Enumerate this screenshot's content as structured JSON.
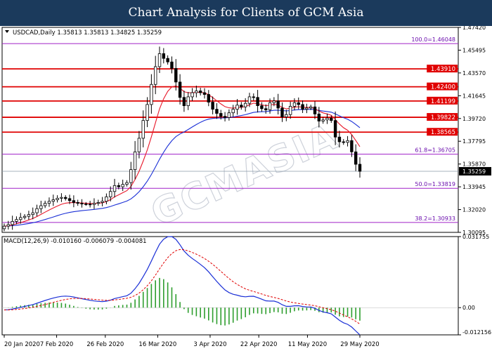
{
  "header": {
    "title": "Chart Analysis for Clients of GCM Asia"
  },
  "watermark": "GCMASIA",
  "chart_data": {
    "type": "candlestick",
    "symbol_line": "USDCAD,Daily  1.35813 1.35813 1.34825 1.35259",
    "current_price": 1.35259,
    "price_axis_ticks": [
      "1.47420",
      "1.45495",
      "1.43570",
      "1.41645",
      "1.39720",
      "1.37795",
      "1.35870",
      "1.33945",
      "1.32020",
      "1.30095"
    ],
    "x_tick_labels": [
      "20 Jan 2020",
      "7 Feb 2020",
      "26 Feb 2020",
      "16 Mar 2020",
      "3 Apr 2020",
      "22 Apr 2020",
      "11 May 2020",
      "29 May 2020"
    ],
    "resistance_levels": [
      1.4391,
      1.424,
      1.41199,
      1.39822,
      1.38565
    ],
    "fib_levels": [
      {
        "label": "100.0=1.46048",
        "value": 1.46048
      },
      {
        "label": "61.8=1.36705",
        "value": 1.36705
      },
      {
        "label": "50.0=1.33819",
        "value": 1.33819
      },
      {
        "label": "38.2=1.30933",
        "value": 1.30933
      }
    ],
    "closes": [
      1.3062,
      1.3075,
      1.3102,
      1.3118,
      1.3135,
      1.3145,
      1.316,
      1.3175,
      1.321,
      1.3235,
      1.3255,
      1.3272,
      1.3285,
      1.3298,
      1.3305,
      1.3295,
      1.3278,
      1.3262,
      1.3255,
      1.325,
      1.3248,
      1.3245,
      1.3255,
      1.3262,
      1.3272,
      1.331,
      1.3355,
      1.3405,
      1.3395,
      1.3415,
      1.343,
      1.354,
      1.369,
      1.3805,
      1.3955,
      1.409,
      1.426,
      1.441,
      1.452,
      1.448,
      1.445,
      1.4395,
      1.428,
      1.415,
      1.408,
      1.4155,
      1.419,
      1.4205,
      1.419,
      1.4175,
      1.411,
      1.405,
      1.4015,
      1.399,
      1.398,
      1.402,
      1.405,
      1.4085,
      1.407,
      1.41,
      1.4155,
      1.415,
      1.408,
      1.4055,
      1.4045,
      1.4105,
      1.412,
      1.406,
      1.3985,
      1.4005,
      1.4075,
      1.4105,
      1.409,
      1.405,
      1.406,
      1.407,
      1.401,
      1.395,
      1.396,
      1.3975,
      1.3955,
      1.3815,
      1.3775,
      1.377,
      1.3785,
      1.369,
      1.3585,
      1.3526
    ],
    "ma_red_label": "",
    "ma_blue_label": "",
    "macd": {
      "label": "MACD(12,26,9) -0.010160 -0.006079 -0.004081",
      "axis_ticks": [
        "0.031755",
        "0.00",
        "-0.012156"
      ],
      "ylim": [
        -0.012156,
        0.031755
      ]
    }
  }
}
